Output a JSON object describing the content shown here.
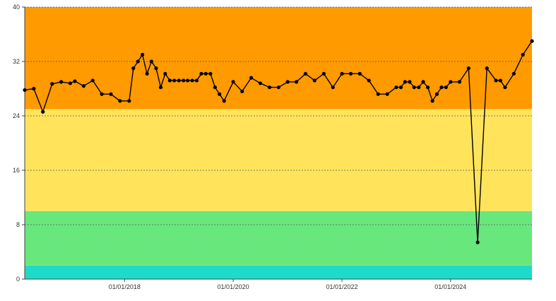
{
  "chart_data": {
    "type": "line",
    "title": "",
    "xlabel": "",
    "ylabel": "",
    "xlim": [
      "2016-03-01",
      "2025-07-01"
    ],
    "ylim": [
      0,
      40
    ],
    "grid": "horizontal dashed",
    "y_ticks": [
      0,
      8,
      16,
      24,
      32,
      40
    ],
    "y_tick_labels": [
      "0",
      "8",
      "16",
      "24",
      "32",
      "40"
    ],
    "x_ticks": [
      "2018-01-01",
      "2020-01-01",
      "2022-01-01",
      "2024-01-01"
    ],
    "x_tick_labels": [
      "01/01/2018",
      "01/01/2020",
      "01/01/2022",
      "01/01/2024"
    ],
    "bands": [
      {
        "from": 0,
        "to": 2,
        "color": "#1edbc9"
      },
      {
        "from": 2,
        "to": 10,
        "color": "#68e77d"
      },
      {
        "from": 10,
        "to": 25,
        "color": "#ffe45b"
      },
      {
        "from": 25,
        "to": 40,
        "color": "#ff9a00"
      }
    ],
    "line_color": "#000000",
    "marker_color": "#000000",
    "series": [
      {
        "x": [
          "2016-03-01",
          "2016-05-01",
          "2016-07-01",
          "2016-09-01",
          "2016-11-01",
          "2017-01-01",
          "2017-02-01",
          "2017-04-01",
          "2017-06-01",
          "2017-08-01",
          "2017-10-01",
          "2017-12-01",
          "2018-02-01",
          "2018-03-01",
          "2018-04-01",
          "2018-05-01",
          "2018-06-01",
          "2018-07-01",
          "2018-08-01",
          "2018-09-01",
          "2018-10-01",
          "2018-11-01",
          "2018-12-01",
          "2019-01-01",
          "2019-02-01",
          "2019-03-01",
          "2019-04-01",
          "2019-05-01",
          "2019-06-01",
          "2019-07-01",
          "2019-08-01",
          "2019-09-01",
          "2019-10-01",
          "2019-11-01",
          "2020-01-01",
          "2020-03-01",
          "2020-05-01",
          "2020-07-01",
          "2020-09-01",
          "2020-11-01",
          "2021-01-01",
          "2021-03-01",
          "2021-05-01",
          "2021-07-01",
          "2021-09-01",
          "2021-11-01",
          "2022-01-01",
          "2022-03-01",
          "2022-05-01",
          "2022-07-01",
          "2022-09-01",
          "2022-11-01",
          "2023-01-01",
          "2023-02-01",
          "2023-03-01",
          "2023-04-01",
          "2023-05-01",
          "2023-06-01",
          "2023-07-01",
          "2023-08-01",
          "2023-09-01",
          "2023-10-01",
          "2023-11-01",
          "2023-12-01",
          "2024-01-01",
          "2024-03-01",
          "2024-05-01",
          "2024-07-01",
          "2024-09-01",
          "2024-11-01",
          "2024-12-01",
          "2025-01-01",
          "2025-03-01",
          "2025-05-01",
          "2025-07-01"
        ],
        "y": [
          27.8,
          28,
          24.6,
          28.7,
          29,
          28.8,
          29.1,
          28.4,
          29.2,
          27.2,
          27.2,
          26.2,
          26.2,
          31,
          32,
          33,
          30.2,
          32,
          31,
          28.2,
          30.2,
          29.2,
          29.2,
          29.2,
          29.2,
          29.2,
          29.2,
          29.2,
          30.2,
          30.2,
          30.2,
          28.2,
          27.2,
          26.2,
          29,
          27.6,
          29.6,
          28.8,
          28.2,
          28.2,
          29,
          29,
          30.2,
          29.2,
          30.2,
          28.2,
          30.2,
          30.2,
          30.2,
          29.2,
          27.2,
          27.2,
          28.2,
          28.2,
          29,
          29,
          28.2,
          28.2,
          29,
          28.2,
          26.2,
          27.2,
          28.2,
          28.2,
          29,
          29,
          31,
          5.4,
          31,
          29.2,
          29.2,
          28.2,
          30.2,
          33,
          35
        ]
      }
    ]
  }
}
